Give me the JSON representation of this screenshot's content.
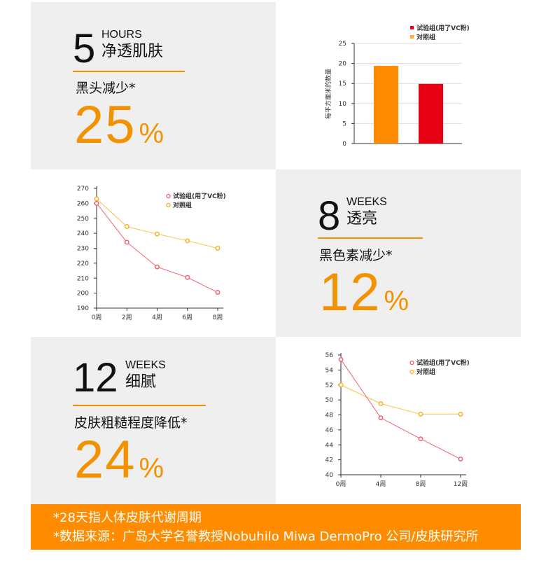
{
  "panels": [
    {
      "num": "5",
      "unit": "HOURS",
      "title": "净透肌肤",
      "label": "黑头减少*",
      "value": "25",
      "pct": "%"
    },
    {
      "num": "8",
      "unit": "WEEKS",
      "title": "透亮",
      "label": "黑色素减少*",
      "value": "12",
      "pct": "%"
    },
    {
      "num": "12",
      "unit": "WEEKS",
      "title": "细腻",
      "label": "皮肤粗糙程度降低*",
      "value": "24",
      "pct": "%"
    }
  ],
  "footer": {
    "line1": "*28天指人体皮肤代谢周期",
    "line2": "*数据来源：广岛大学名誉教授Nobuhilo Miwa DermoPro 公司/皮肤研究所"
  },
  "colors": {
    "test": "#e60012",
    "control": "#ff8c00",
    "test_line": "#f06070",
    "control_line": "#ffc040",
    "accent": "#f39200"
  },
  "chart_data": [
    {
      "type": "bar",
      "ylabel": "每平方厘米的数量",
      "ylim": [
        0,
        25
      ],
      "yticks": [
        0,
        5,
        10,
        15,
        20,
        25
      ],
      "categories": [
        "对照组",
        "试验组(用了VC粉)"
      ],
      "values": [
        19.4,
        14.9
      ],
      "legend": [
        "试验组(用了VC粉)",
        "对照组"
      ],
      "legend_position": "top-right",
      "grid": true
    },
    {
      "type": "line",
      "ylim": [
        190,
        270
      ],
      "yticks": [
        190,
        200,
        210,
        220,
        230,
        240,
        250,
        260,
        270
      ],
      "x": [
        "0周",
        "2周",
        "4周",
        "6周",
        "8周"
      ],
      "series": [
        {
          "name": "试验组(用了VC粉)",
          "values": [
            260,
            234,
            217.5,
            210.5,
            200.5
          ]
        },
        {
          "name": "对照组",
          "values": [
            263,
            244.5,
            239.5,
            235,
            230
          ]
        }
      ],
      "legend_position": "top-right"
    },
    {
      "type": "line",
      "ylim": [
        40,
        56
      ],
      "yticks": [
        40,
        42,
        44,
        46,
        48,
        50,
        52,
        54,
        56
      ],
      "x": [
        "0周",
        "4周",
        "8周",
        "12周"
      ],
      "series": [
        {
          "name": "试验组(用了VC粉)",
          "values": [
            55.4,
            47.6,
            44.8,
            42.1
          ]
        },
        {
          "name": "对照组",
          "values": [
            52,
            49.5,
            48.1,
            48.1
          ]
        }
      ],
      "legend_position": "top-right"
    }
  ]
}
